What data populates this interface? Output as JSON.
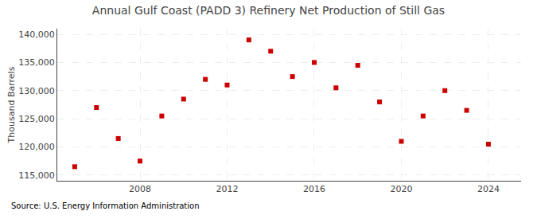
{
  "chart_data": {
    "type": "scatter",
    "title": "Annual Gulf Coast (PADD 3) Refinery Net Production of Still Gas",
    "ylabel": "Thousand Barrels",
    "annotations": [
      "Source: U.S. Energy Information Administration"
    ],
    "x": [
      2005,
      2006,
      2007,
      2008,
      2009,
      2010,
      2011,
      2012,
      2013,
      2014,
      2015,
      2016,
      2017,
      2018,
      2019,
      2020,
      2021,
      2022,
      2023,
      2024
    ],
    "values": [
      116500,
      127000,
      121500,
      117500,
      125500,
      128500,
      132000,
      131000,
      139000,
      137000,
      132500,
      135000,
      130500,
      134500,
      128000,
      121000,
      125500,
      130000,
      126500,
      120500
    ],
    "color": "#cc0000",
    "marker": "square",
    "xlim": [
      2004.2,
      2025.5
    ],
    "xticks": [
      2008,
      2012,
      2016,
      2020,
      2024
    ],
    "ylim": [
      114000,
      141000
    ],
    "yticks": [
      {
        "value": 115000,
        "label": "115,000"
      },
      {
        "value": 120000,
        "label": "120,000"
      },
      {
        "value": 125000,
        "label": "125,000"
      },
      {
        "value": 130000,
        "label": "130,000"
      },
      {
        "value": 135000,
        "label": "135,000"
      },
      {
        "value": 140000,
        "label": "140,000"
      }
    ],
    "grid": true
  }
}
